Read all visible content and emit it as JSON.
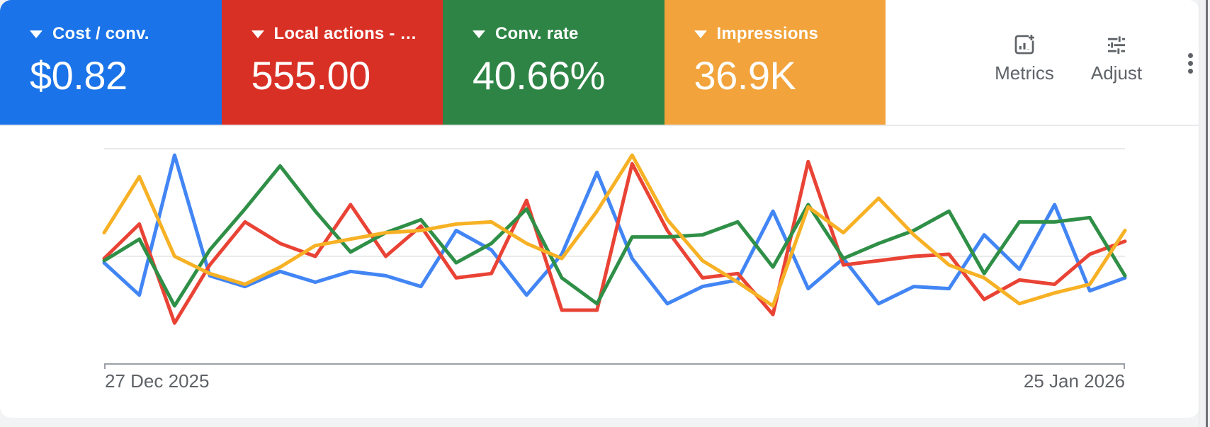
{
  "metric_cards": [
    {
      "label": "Cost / conv.",
      "value": "$0.82",
      "color": "#1a73e8",
      "icon": "triangle-down-icon"
    },
    {
      "label": "Local actions - …",
      "value": "555.00",
      "color": "#d93025",
      "icon": "triangle-down-icon"
    },
    {
      "label": "Conv. rate",
      "value": "40.66%",
      "color": "#2e8445",
      "icon": "triangle-down-icon"
    },
    {
      "label": "Impressions",
      "value": "36.9K",
      "color": "#f2a33b",
      "icon": "triangle-down-icon"
    }
  ],
  "toolbar": {
    "metrics_label": "Metrics",
    "metrics_icon": "add-chart-icon",
    "adjust_label": "Adjust",
    "adjust_icon": "tune-icon",
    "menu_icon": "kebab-menu-icon",
    "icon_color": "#5f6368"
  },
  "chart_data": {
    "type": "line",
    "title": "",
    "xlabel": "",
    "ylabel": "",
    "x_axis": {
      "start_label": "27 Dec 2025",
      "end_label": "25 Jan 2026",
      "num_points": 30,
      "unit": "day"
    },
    "y_axis": {
      "tick_labels_visible": false,
      "scale_note": "values are percent of plot height: 0 = baseline axis, 100 = top gridline",
      "ylim": [
        0,
        100
      ]
    },
    "layout": {
      "grid": "2 light horizontal gridlines (top and middle) plus darker baseline with end ticks",
      "gridline_color": "#e9eaec",
      "axis_color": "#9aa0a6",
      "legend_position": "none (series colors match metric cards)"
    },
    "series": [
      {
        "name": "Cost / conv.",
        "color": "#4285f4",
        "values": [
          47,
          32,
          97,
          41,
          36,
          43,
          38,
          43,
          41,
          36,
          62,
          53,
          32,
          51,
          89,
          49,
          28,
          36,
          39,
          71,
          35,
          49,
          28,
          36,
          35,
          60,
          44,
          74,
          34,
          40
        ]
      },
      {
        "name": "Local actions - …",
        "color": "#e94335",
        "values": [
          49,
          65,
          19,
          46,
          66,
          56,
          50,
          74,
          50,
          64,
          40,
          42,
          76,
          25,
          25,
          93,
          62,
          40,
          42,
          23,
          94,
          46,
          48,
          50,
          51,
          30,
          39,
          37,
          51,
          57
        ]
      },
      {
        "name": "Conv. rate",
        "color": "#2f8f47",
        "values": [
          48,
          58,
          27,
          53,
          72,
          92,
          71,
          52,
          61,
          67,
          47,
          56,
          72,
          40,
          28,
          59,
          59,
          60,
          66,
          45,
          74,
          49,
          56,
          62,
          71,
          42,
          66,
          66,
          68,
          41
        ]
      },
      {
        "name": "Impressions",
        "color": "#f7b125",
        "values": [
          61,
          87,
          50,
          42,
          37,
          45,
          55,
          58,
          61,
          62,
          65,
          66,
          56,
          49,
          71,
          97,
          67,
          48,
          38,
          27,
          73,
          61,
          77,
          60,
          46,
          40,
          28,
          33,
          37,
          62
        ]
      }
    ]
  }
}
